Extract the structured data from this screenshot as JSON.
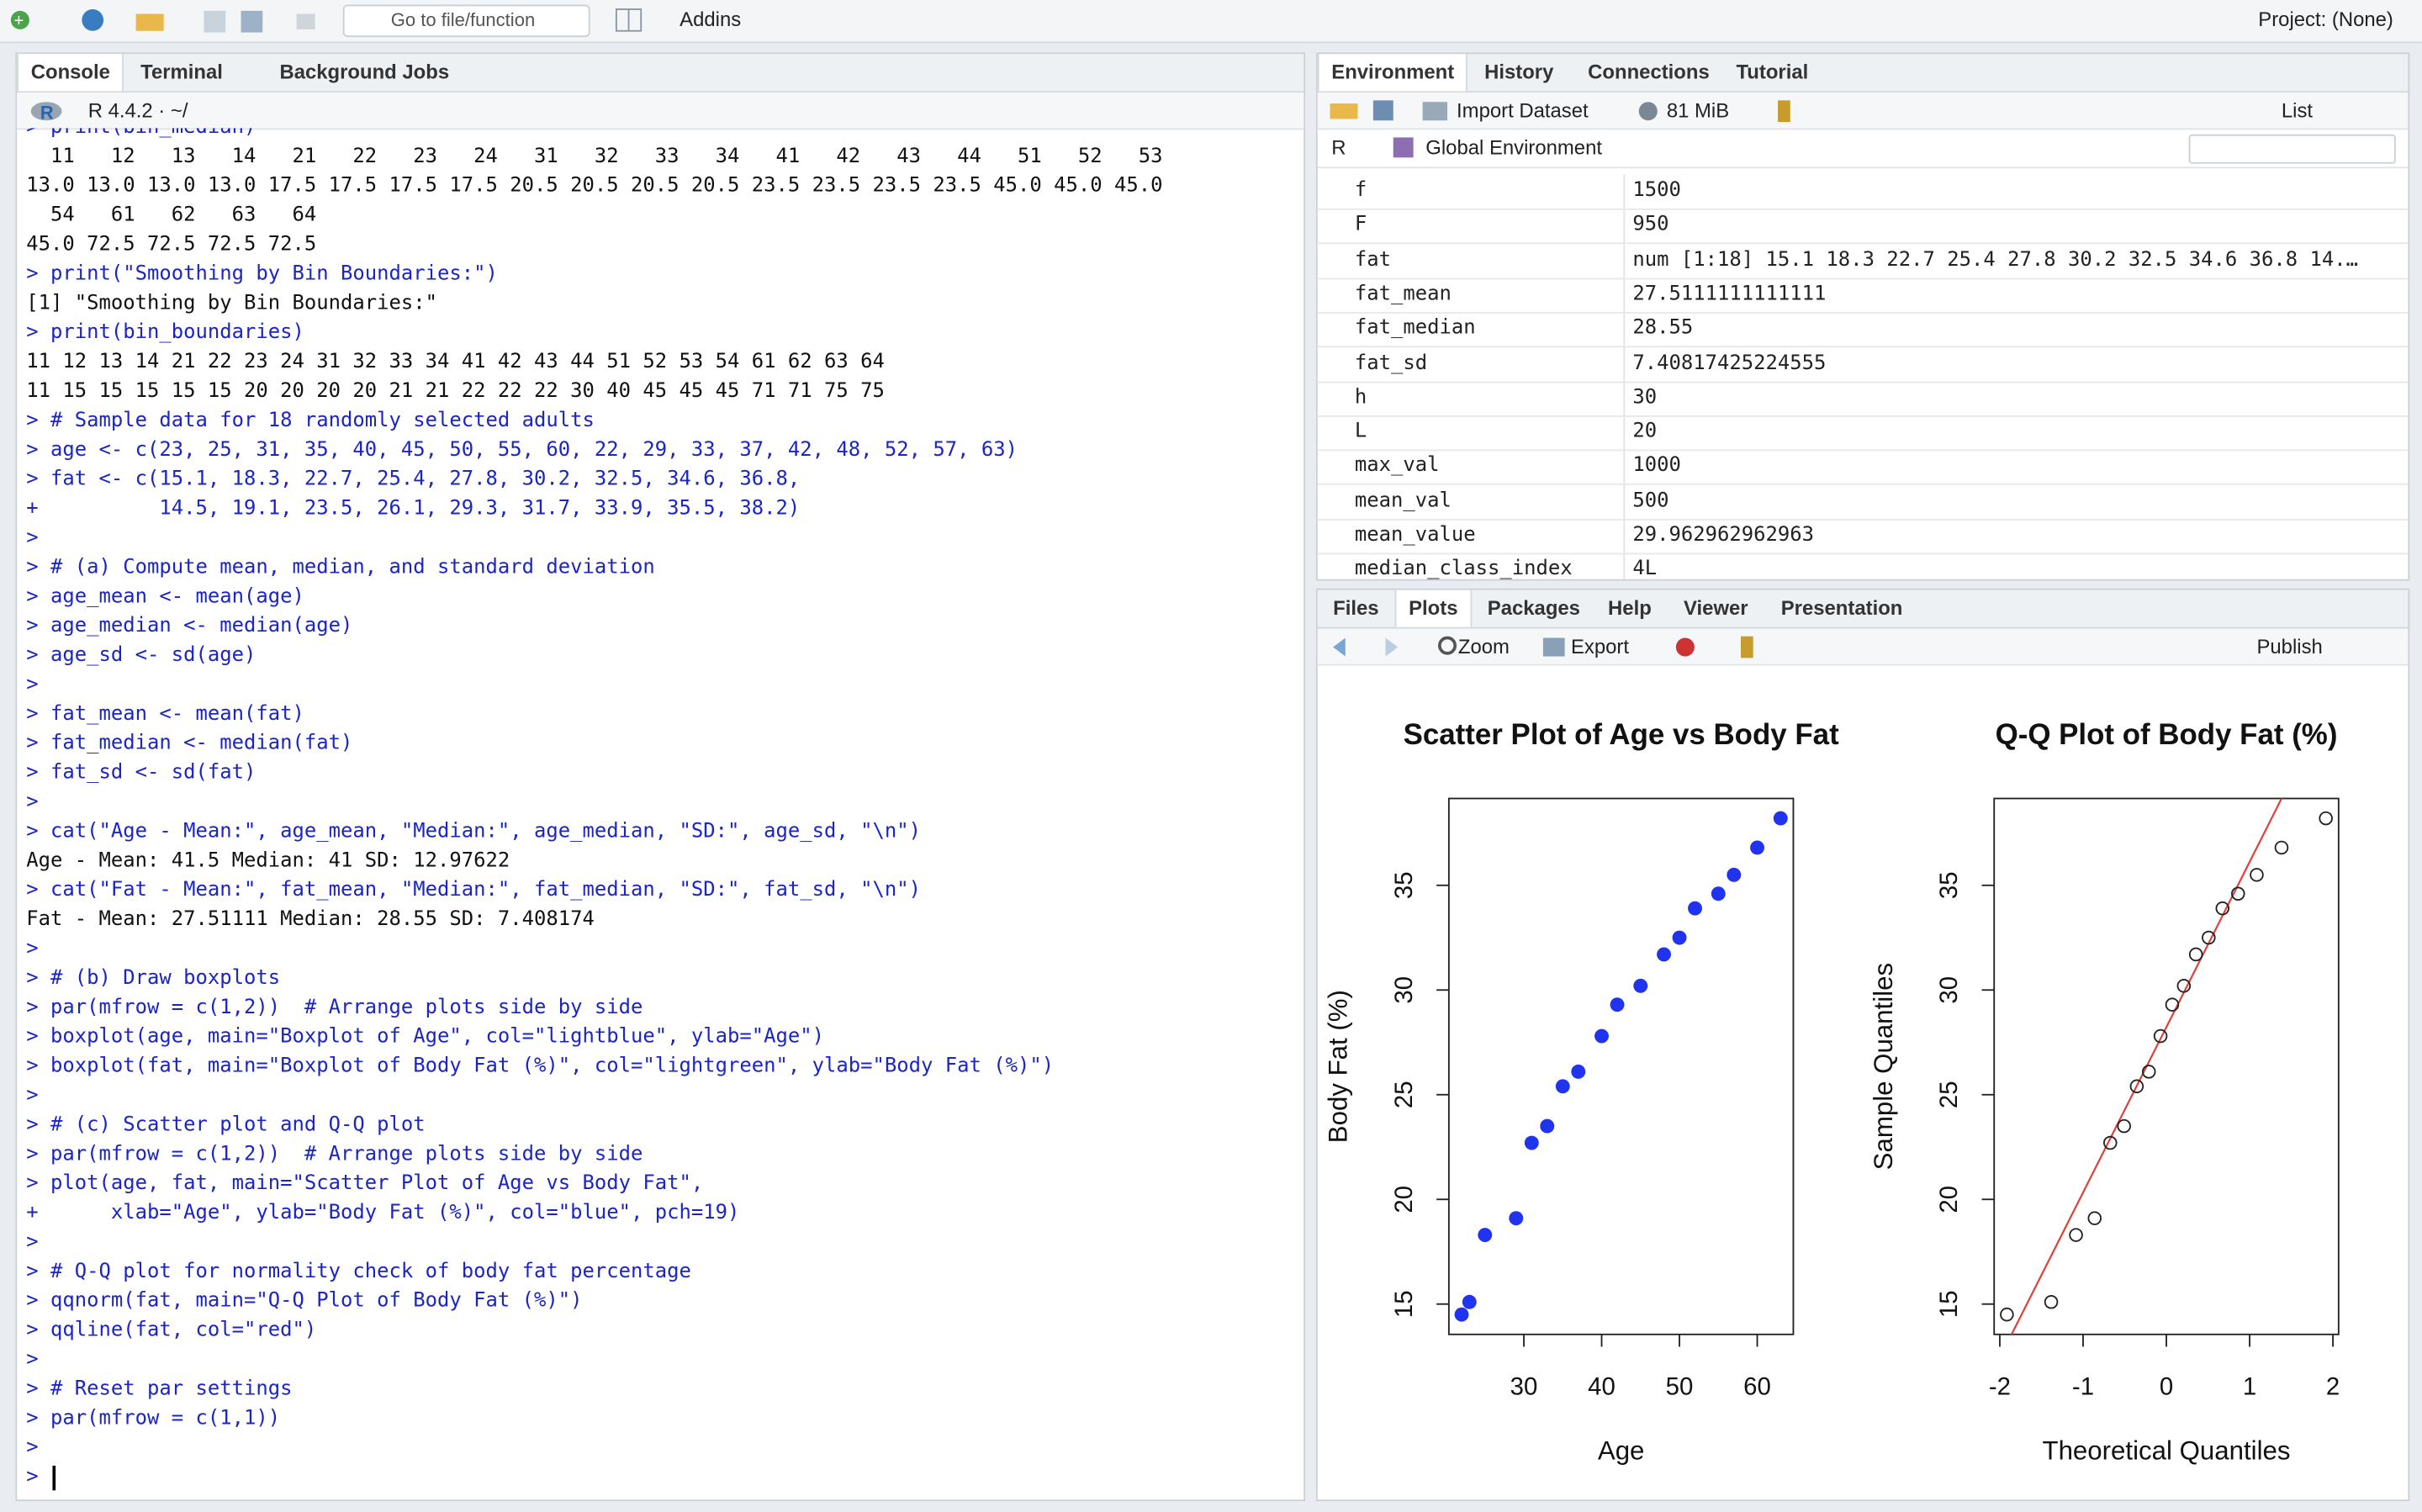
{
  "toolbar": {
    "goto": "Go to file/function",
    "addins": "Addins",
    "project": "Project: (None)"
  },
  "left_pane": {
    "tabs": [
      "Console",
      "Terminal",
      "Background Jobs"
    ],
    "version": "R 4.4.2 · ~/"
  },
  "console": {
    "lines": [
      "> print(bin_median)",
      "  11   12   13   14   21   22   23   24   31   32   33   34   41   42   43   44   51   52   53",
      "13.0 13.0 13.0 13.0 17.5 17.5 17.5 17.5 20.5 20.5 20.5 20.5 23.5 23.5 23.5 23.5 45.0 45.0 45.0",
      "  54   61   62   63   64",
      "45.0 72.5 72.5 72.5 72.5",
      "> print(\"Smoothing by Bin Boundaries:\")",
      "[1] \"Smoothing by Bin Boundaries:\"",
      "> print(bin_boundaries)",
      "11 12 13 14 21 22 23 24 31 32 33 34 41 42 43 44 51 52 53 54 61 62 63 64",
      "11 15 15 15 15 15 20 20 20 20 21 21 22 22 22 30 40 45 45 45 71 71 75 75",
      "> # Sample data for 18 randomly selected adults",
      "> age <- c(23, 25, 31, 35, 40, 45, 50, 55, 60, 22, 29, 33, 37, 42, 48, 52, 57, 63)",
      "> fat <- c(15.1, 18.3, 22.7, 25.4, 27.8, 30.2, 32.5, 34.6, 36.8,",
      "+          14.5, 19.1, 23.5, 26.1, 29.3, 31.7, 33.9, 35.5, 38.2)",
      ">",
      "> # (a) Compute mean, median, and standard deviation",
      "> age_mean <- mean(age)",
      "> age_median <- median(age)",
      "> age_sd <- sd(age)",
      ">",
      "> fat_mean <- mean(fat)",
      "> fat_median <- median(fat)",
      "> fat_sd <- sd(fat)",
      ">",
      "> cat(\"Age - Mean:\", age_mean, \"Median:\", age_median, \"SD:\", age_sd, \"\\n\")",
      "Age - Mean: 41.5 Median: 41 SD: 12.97622",
      "> cat(\"Fat - Mean:\", fat_mean, \"Median:\", fat_median, \"SD:\", fat_sd, \"\\n\")",
      "Fat - Mean: 27.51111 Median: 28.55 SD: 7.408174",
      ">",
      "> # (b) Draw boxplots",
      "> par(mfrow = c(1,2))  # Arrange plots side by side",
      "> boxplot(age, main=\"Boxplot of Age\", col=\"lightblue\", ylab=\"Age\")",
      "> boxplot(fat, main=\"Boxplot of Body Fat (%)\", col=\"lightgreen\", ylab=\"Body Fat (%)\")",
      ">",
      "> # (c) Scatter plot and Q-Q plot",
      "> par(mfrow = c(1,2))  # Arrange plots side by side",
      "> plot(age, fat, main=\"Scatter Plot of Age vs Body Fat\",",
      "+      xlab=\"Age\", ylab=\"Body Fat (%)\", col=\"blue\", pch=19)",
      ">",
      "> # Q-Q plot for normality check of body fat percentage",
      "> qqnorm(fat, main=\"Q-Q Plot of Body Fat (%)\")",
      "> qqline(fat, col=\"red\")",
      ">",
      "> # Reset par settings",
      "> par(mfrow = c(1,1))",
      ">",
      ">"
    ]
  },
  "env_pane": {
    "tabs": [
      "Environment",
      "History",
      "Connections",
      "Tutorial"
    ],
    "import": "Import Dataset",
    "memory": "81 MiB",
    "view": "List",
    "lang": "R",
    "scope": "Global Environment",
    "rows": [
      [
        "f",
        "1500"
      ],
      [
        "F",
        "950"
      ],
      [
        "fat",
        "num [1:18] 15.1 18.3 22.7 25.4 27.8 30.2 32.5 34.6 36.8 14.…"
      ],
      [
        "fat_mean",
        "27.5111111111111"
      ],
      [
        "fat_median",
        "28.55"
      ],
      [
        "fat_sd",
        "7.40817425224555"
      ],
      [
        "h",
        "30"
      ],
      [
        "L",
        "20"
      ],
      [
        "max_val",
        "1000"
      ],
      [
        "mean_val",
        "500"
      ],
      [
        "mean_value",
        "29.962962962963"
      ],
      [
        "median_class_index",
        "4L"
      ]
    ]
  },
  "plots_pane": {
    "tabs": [
      "Files",
      "Plots",
      "Packages",
      "Help",
      "Viewer",
      "Presentation"
    ],
    "zoom": "Zoom",
    "export": "Export",
    "publish": "Publish"
  },
  "chart_data": [
    {
      "type": "scatter",
      "title": "Scatter Plot of Age vs Body Fat",
      "xlabel": "Age",
      "ylabel": "Body Fat (%)",
      "x": [
        23,
        25,
        31,
        35,
        40,
        45,
        50,
        55,
        60,
        22,
        29,
        33,
        37,
        42,
        48,
        52,
        57,
        63
      ],
      "y": [
        15.1,
        18.3,
        22.7,
        25.4,
        27.8,
        30.2,
        32.5,
        34.6,
        36.8,
        14.5,
        19.1,
        23.5,
        26.1,
        29.3,
        31.7,
        33.9,
        35.5,
        38.2
      ],
      "xlim": [
        20.36,
        64.64
      ],
      "ylim": [
        13.552,
        39.148
      ],
      "xticks": [
        30,
        40,
        50,
        60
      ],
      "yticks": [
        15,
        20,
        25,
        30,
        35
      ],
      "color": "#1f33f0",
      "filled": true
    },
    {
      "type": "qq",
      "title": "Q-Q Plot of Body Fat (%)",
      "xlabel": "Theoretical Quantiles",
      "ylabel": "Sample Quantiles",
      "x": [
        -1.915,
        -1.383,
        -1.085,
        -0.861,
        -0.674,
        -0.508,
        -0.355,
        -0.21,
        -0.07,
        0.07,
        0.21,
        0.355,
        0.508,
        0.674,
        0.861,
        1.085,
        1.383,
        1.915
      ],
      "y": [
        14.5,
        15.1,
        18.3,
        19.1,
        22.7,
        23.5,
        25.4,
        26.1,
        27.8,
        29.3,
        30.2,
        31.7,
        32.5,
        33.9,
        34.6,
        35.5,
        36.8,
        38.2
      ],
      "xlim": [
        -2.068,
        2.068
      ],
      "ylim": [
        13.552,
        39.148
      ],
      "xticks": [
        -2,
        -1,
        0,
        1,
        2
      ],
      "yticks": [
        15,
        20,
        25,
        30,
        35
      ],
      "color": "#222222",
      "filled": false,
      "line": {
        "intercept": 28.225,
        "slope": 7.895,
        "color": "#e0403a"
      }
    }
  ]
}
